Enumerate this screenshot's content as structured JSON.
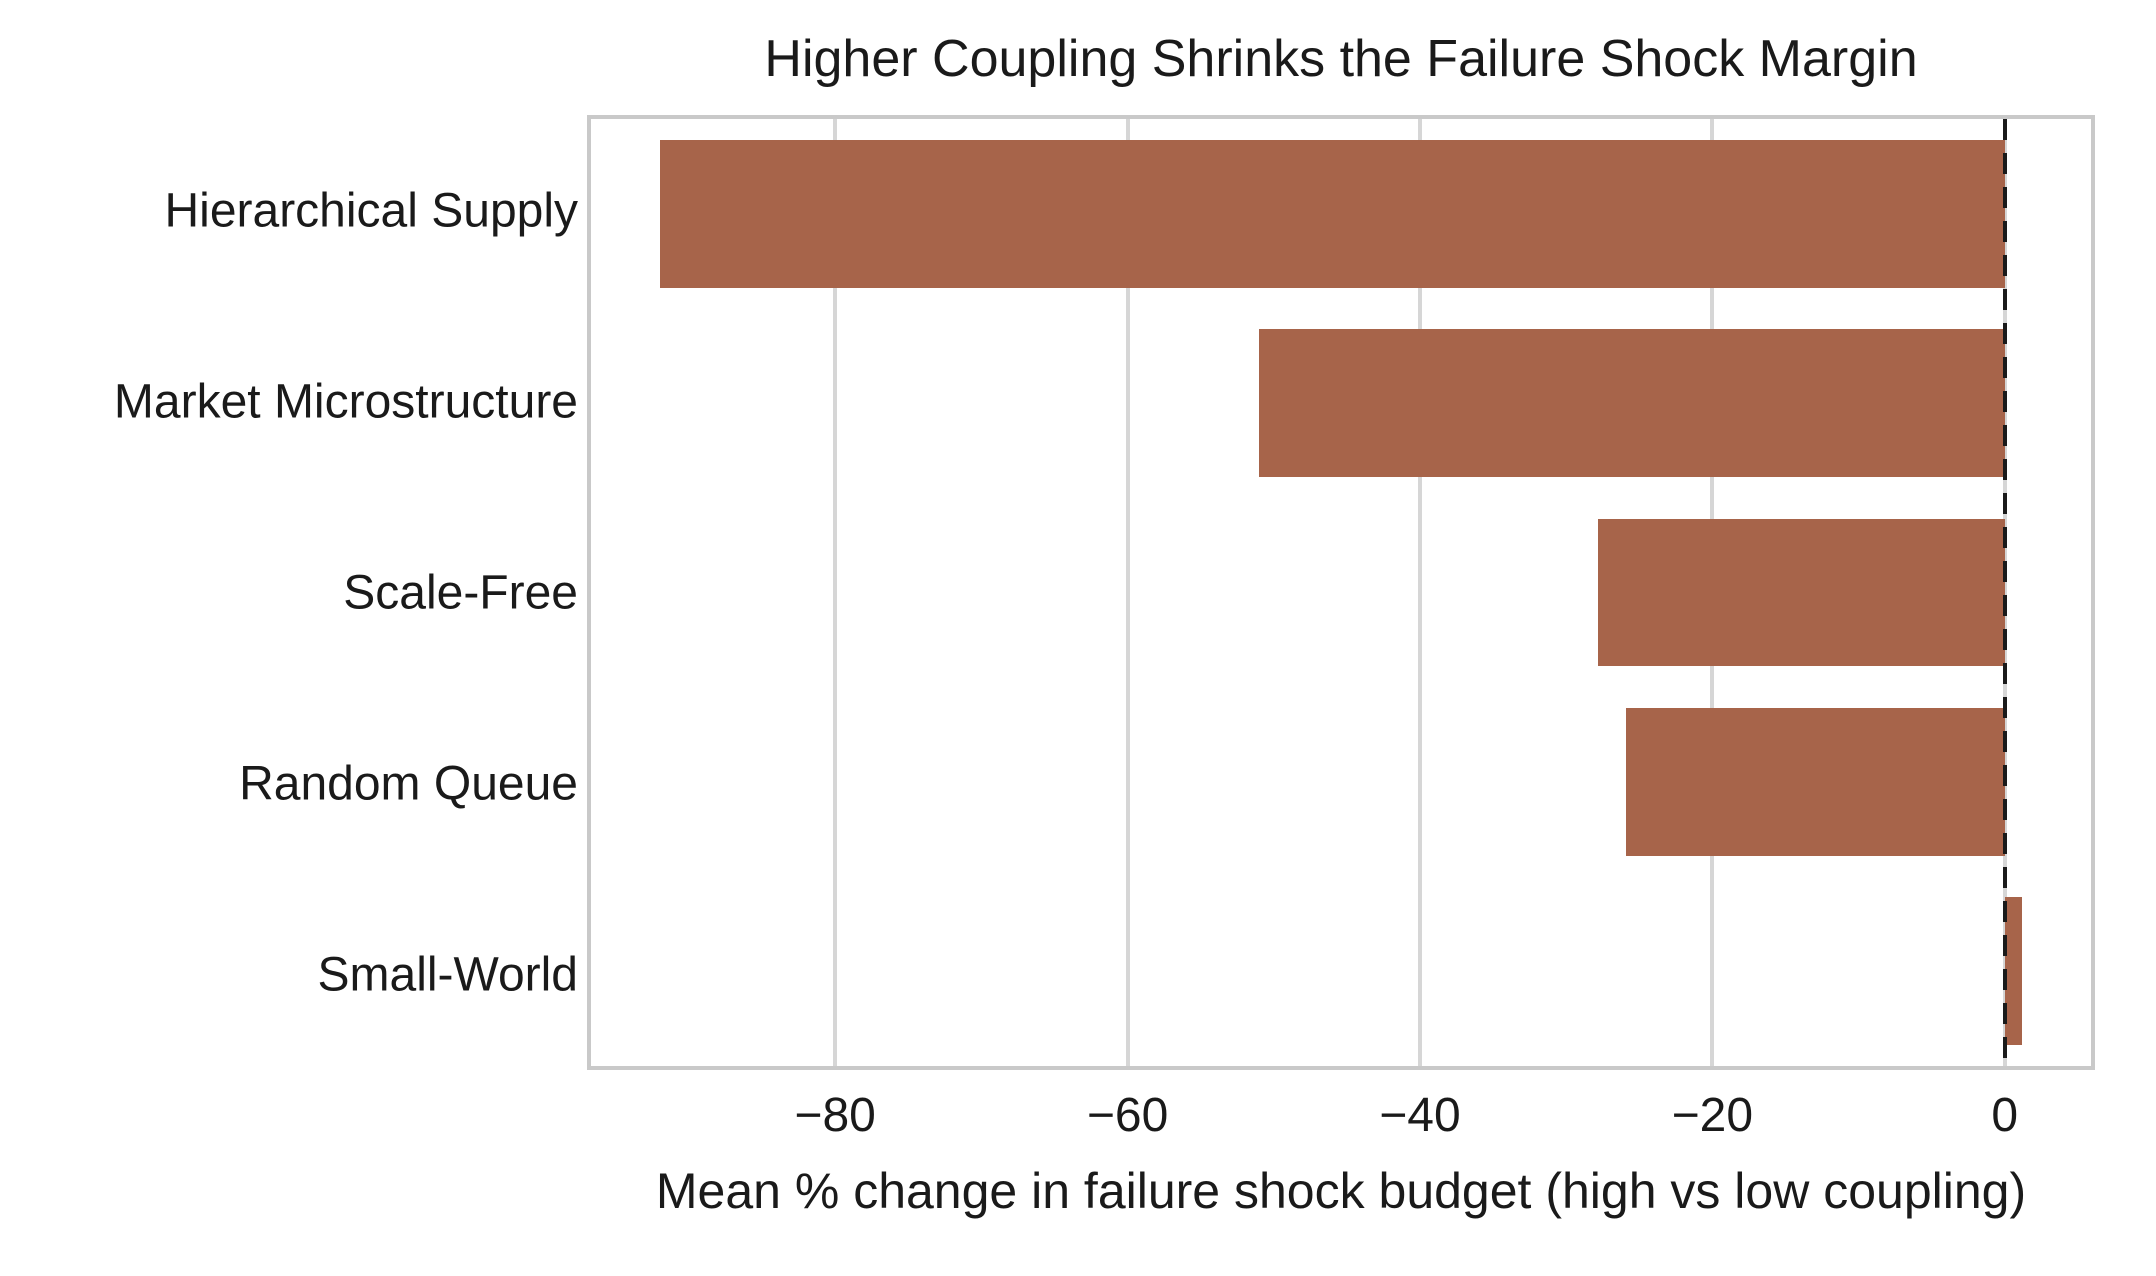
{
  "colors": {
    "bar": "#a7644a",
    "grid": "#d6d6d6",
    "spine": "#c9c9c9",
    "zero_line": "#1a1a1a",
    "text": "#1a1a1a",
    "background": "#ffffff"
  },
  "chart_data": {
    "type": "bar",
    "orientation": "horizontal",
    "title": "Higher Coupling Shrinks the Failure Shock Margin",
    "xlabel": "Mean % change in failure shock budget (high vs low coupling)",
    "ylabel": "",
    "categories": [
      "Hierarchical Supply",
      "Market Microstructure",
      "Scale-Free",
      "Random Queue",
      "Small-World"
    ],
    "values": [
      -92,
      -51,
      -27.8,
      -25.9,
      1.2
    ],
    "xticks": [
      -80,
      -60,
      -40,
      -20,
      0
    ],
    "xlim": [
      -96.7,
      5.9
    ],
    "grid": "vertical-only",
    "legend": "none",
    "zero_reference_line": {
      "x": 0,
      "style": "dashed",
      "color": "#1a1a1a"
    },
    "bar_color": "#a7644a"
  }
}
